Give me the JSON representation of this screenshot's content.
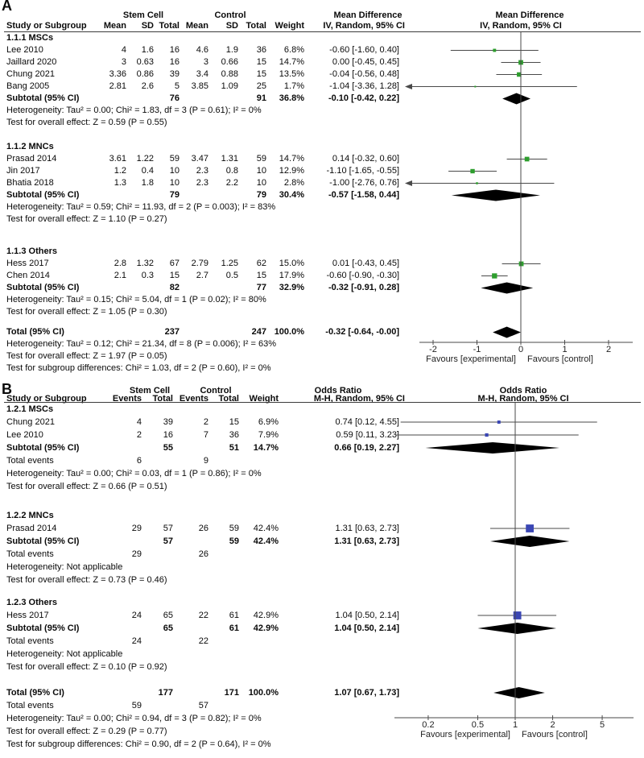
{
  "colors": {
    "marker_a": "#2d9e2d",
    "marker_b": "#3a46b4",
    "ci_line": "#4a4a4a",
    "axis": "#4a4a4a",
    "diamond": "#000000"
  },
  "chart_data": [
    {
      "type": "forest",
      "label": "A",
      "headers": {
        "group1": "Stem Cell",
        "group2": "Control",
        "effect": "Mean Difference",
        "study": "Study or Subgroup",
        "cols": [
          "Mean",
          "SD",
          "Total",
          "Mean",
          "SD",
          "Total"
        ],
        "weight_label": "Weight",
        "method": "IV, Random, 95% CI"
      },
      "scale": {
        "type": "linear",
        "range": [
          -2.6,
          2.6
        ],
        "ticks": [
          -2,
          -1,
          0,
          1,
          2
        ],
        "tick_labels": [
          "-2",
          "-1",
          "0",
          "1",
          "2"
        ],
        "favours_left": "Favours [experimental]",
        "favours_right": "Favours [control]"
      },
      "rows": [
        {
          "t": "group",
          "label": "1.1.1 MSCs"
        },
        {
          "t": "study",
          "label": "Lee 2010",
          "cols": [
            "4",
            "1.6",
            "16",
            "4.6",
            "1.9",
            "36"
          ],
          "weight": "6.8%",
          "w": 6.8,
          "ci": "-0.60 [-1.60, 0.40]",
          "est": -0.6,
          "lo": -1.6,
          "hi": 0.4
        },
        {
          "t": "study",
          "label": "Jaillard 2020",
          "cols": [
            "3",
            "0.63",
            "16",
            "3",
            "0.66",
            "15"
          ],
          "weight": "14.7%",
          "w": 14.7,
          "ci": "0.00 [-0.45, 0.45]",
          "est": 0.0,
          "lo": -0.45,
          "hi": 0.45
        },
        {
          "t": "study",
          "label": "Chung 2021",
          "cols": [
            "3.36",
            "0.86",
            "39",
            "3.4",
            "0.88",
            "15"
          ],
          "weight": "13.5%",
          "w": 13.5,
          "ci": "-0.04 [-0.56, 0.48]",
          "est": -0.04,
          "lo": -0.56,
          "hi": 0.48
        },
        {
          "t": "study",
          "label": "Bang 2005",
          "cols": [
            "2.81",
            "2.6",
            "5",
            "3.85",
            "1.09",
            "25"
          ],
          "weight": "1.7%",
          "w": 1.7,
          "ci": "-1.04 [-3.36, 1.28]",
          "est": -1.04,
          "lo": -3.36,
          "hi": 1.28
        },
        {
          "t": "pooled",
          "label": "Subtotal (95% CI)",
          "cols": [
            "",
            "",
            "76",
            "",
            "",
            "91"
          ],
          "weight": "36.8%",
          "ci": "-0.10 [-0.42, 0.22]",
          "est": -0.1,
          "lo": -0.42,
          "hi": 0.22
        },
        {
          "t": "note",
          "text": "Heterogeneity: Tau² = 0.00; Chi² = 1.83, df = 3 (P = 0.61); I² = 0%"
        },
        {
          "t": "note",
          "text": "Test for overall effect: Z = 0.59 (P = 0.55)"
        },
        {
          "t": "gap"
        },
        {
          "t": "group",
          "label": "1.1.2 MNCs"
        },
        {
          "t": "study",
          "label": "Prasad 2014",
          "cols": [
            "3.61",
            "1.22",
            "59",
            "3.47",
            "1.31",
            "59"
          ],
          "weight": "14.7%",
          "w": 14.7,
          "ci": "0.14 [-0.32, 0.60]",
          "est": 0.14,
          "lo": -0.32,
          "hi": 0.6
        },
        {
          "t": "study",
          "label": "Jin 2017",
          "cols": [
            "1.2",
            "0.4",
            "10",
            "2.3",
            "0.8",
            "10"
          ],
          "weight": "12.9%",
          "w": 12.9,
          "ci": "-1.10 [-1.65, -0.55]",
          "est": -1.1,
          "lo": -1.65,
          "hi": -0.55
        },
        {
          "t": "study",
          "label": "Bhatia 2018",
          "cols": [
            "1.3",
            "1.8",
            "10",
            "2.3",
            "2.2",
            "10"
          ],
          "weight": "2.8%",
          "w": 2.8,
          "ci": "-1.00 [-2.76, 0.76]",
          "est": -1.0,
          "lo": -2.76,
          "hi": 0.76
        },
        {
          "t": "pooled",
          "label": "Subtotal (95% CI)",
          "cols": [
            "",
            "",
            "79",
            "",
            "",
            "79"
          ],
          "weight": "30.4%",
          "ci": "-0.57 [-1.58, 0.44]",
          "est": -0.57,
          "lo": -1.58,
          "hi": 0.44
        },
        {
          "t": "note",
          "text": "Heterogeneity: Tau² = 0.59; Chi² = 11.93, df = 2 (P = 0.003); I² = 83%"
        },
        {
          "t": "note",
          "text": "Test for overall effect: Z = 1.10 (P = 0.27)"
        },
        {
          "t": "gap"
        },
        {
          "t": "group",
          "label": "1.1.3 Others"
        },
        {
          "t": "study",
          "label": "Hess 2017",
          "cols": [
            "2.8",
            "1.32",
            "67",
            "2.79",
            "1.25",
            "62"
          ],
          "weight": "15.0%",
          "w": 15.0,
          "ci": "0.01 [-0.43, 0.45]",
          "est": 0.01,
          "lo": -0.43,
          "hi": 0.45
        },
        {
          "t": "study",
          "label": "Chen 2014",
          "cols": [
            "2.1",
            "0.3",
            "15",
            "2.7",
            "0.5",
            "15"
          ],
          "weight": "17.9%",
          "w": 17.9,
          "ci": "-0.60 [-0.90, -0.30]",
          "est": -0.6,
          "lo": -0.9,
          "hi": -0.3
        },
        {
          "t": "pooled",
          "label": "Subtotal (95% CI)",
          "cols": [
            "",
            "",
            "82",
            "",
            "",
            "77"
          ],
          "weight": "32.9%",
          "ci": "-0.32 [-0.91, 0.28]",
          "est": -0.32,
          "lo": -0.91,
          "hi": 0.28
        },
        {
          "t": "note",
          "text": "Heterogeneity: Tau² = 0.15; Chi² = 5.04, df = 1 (P = 0.02); I² = 80%"
        },
        {
          "t": "note",
          "text": "Test for overall effect: Z = 1.05 (P = 0.30)"
        },
        {
          "t": "gap"
        },
        {
          "t": "pooled",
          "label": "Total (95% CI)",
          "cols": [
            "",
            "",
            "237",
            "",
            "",
            "247"
          ],
          "weight": "100.0%",
          "ci": "-0.32 [-0.64, -0.00]",
          "est": -0.32,
          "lo": -0.64,
          "hi": 0.0
        },
        {
          "t": "note",
          "text": "Heterogeneity: Tau² = 0.12; Chi² = 21.34, df = 8 (P = 0.006); I² = 63%"
        },
        {
          "t": "note",
          "text": "Test for overall effect: Z = 1.97 (P = 0.05)"
        },
        {
          "t": "note",
          "text": "Test for subgroup differences: Chi² = 1.03, df = 2 (P = 0.60), I² = 0%"
        }
      ]
    },
    {
      "type": "forest",
      "label": "B",
      "headers": {
        "group1": "Stem Cell",
        "group2": "Control",
        "effect": "Odds Ratio",
        "study": "Study or Subgroup",
        "cols": [
          "Events",
          "Total",
          "Events",
          "Total"
        ],
        "weight_label": "Weight",
        "method": "M-H, Random, 95% CI"
      },
      "scale": {
        "type": "log",
        "range": [
          0.1,
          7
        ],
        "ticks": [
          0.2,
          0.5,
          1,
          2,
          5
        ],
        "tick_labels": [
          "0.2",
          "0.5",
          "1",
          "2",
          "5"
        ],
        "favours_left": "Favours [experimental]",
        "favours_right": "Favours [control]"
      },
      "rows": [
        {
          "t": "group",
          "label": "1.2.1 MSCs"
        },
        {
          "t": "study",
          "label": "Chung 2021",
          "cols": [
            "4",
            "39",
            "2",
            "15"
          ],
          "weight": "6.9%",
          "w": 6.9,
          "ci": "0.74 [0.12, 4.55]",
          "est": 0.74,
          "lo": 0.12,
          "hi": 4.55
        },
        {
          "t": "study",
          "label": "Lee 2010",
          "cols": [
            "2",
            "16",
            "7",
            "36"
          ],
          "weight": "7.9%",
          "w": 7.9,
          "ci": "0.59 [0.11, 3.23]",
          "est": 0.59,
          "lo": 0.11,
          "hi": 3.23
        },
        {
          "t": "pooled",
          "label": "Subtotal (95% CI)",
          "cols": [
            "",
            "55",
            "",
            "51"
          ],
          "weight": "14.7%",
          "ci": "0.66 [0.19, 2.27]",
          "est": 0.66,
          "lo": 0.19,
          "hi": 2.27
        },
        {
          "t": "events",
          "label": "Total events",
          "v1": "6",
          "v2": "9"
        },
        {
          "t": "note",
          "text": "Heterogeneity: Tau² = 0.00; Chi² = 0.03, df = 1 (P = 0.86); I² = 0%"
        },
        {
          "t": "note",
          "text": "Test for overall effect: Z = 0.66 (P = 0.51)"
        },
        {
          "t": "gap"
        },
        {
          "t": "group",
          "label": "1.2.2 MNCs"
        },
        {
          "t": "study",
          "label": "Prasad 2014",
          "cols": [
            "29",
            "57",
            "26",
            "59"
          ],
          "weight": "42.4%",
          "w": 42.4,
          "ci": "1.31 [0.63, 2.73]",
          "est": 1.31,
          "lo": 0.63,
          "hi": 2.73
        },
        {
          "t": "pooled",
          "label": "Subtotal (95% CI)",
          "cols": [
            "",
            "57",
            "",
            "59"
          ],
          "weight": "42.4%",
          "ci": "1.31 [0.63, 2.73]",
          "est": 1.31,
          "lo": 0.63,
          "hi": 2.73
        },
        {
          "t": "events",
          "label": "Total events",
          "v1": "29",
          "v2": "26"
        },
        {
          "t": "note",
          "text": "Heterogeneity: Not applicable"
        },
        {
          "t": "note",
          "text": "Test for overall effect: Z = 0.73 (P = 0.46)"
        },
        {
          "t": "gap"
        },
        {
          "t": "group",
          "label": "1.2.3 Others"
        },
        {
          "t": "study",
          "label": "Hess 2017",
          "cols": [
            "24",
            "65",
            "22",
            "61"
          ],
          "weight": "42.9%",
          "w": 42.9,
          "ci": "1.04 [0.50, 2.14]",
          "est": 1.04,
          "lo": 0.5,
          "hi": 2.14
        },
        {
          "t": "pooled",
          "label": "Subtotal (95% CI)",
          "cols": [
            "",
            "65",
            "",
            "61"
          ],
          "weight": "42.9%",
          "ci": "1.04 [0.50, 2.14]",
          "est": 1.04,
          "lo": 0.5,
          "hi": 2.14
        },
        {
          "t": "events",
          "label": "Total events",
          "v1": "24",
          "v2": "22"
        },
        {
          "t": "note",
          "text": "Heterogeneity: Not applicable"
        },
        {
          "t": "note",
          "text": "Test for overall effect: Z = 0.10 (P = 0.92)"
        },
        {
          "t": "gap"
        },
        {
          "t": "pooled",
          "label": "Total (95% CI)",
          "cols": [
            "",
            "177",
            "",
            "171"
          ],
          "weight": "100.0%",
          "ci": "1.07 [0.67, 1.73]",
          "est": 1.07,
          "lo": 0.67,
          "hi": 1.73
        },
        {
          "t": "events",
          "label": "Total events",
          "v1": "59",
          "v2": "57"
        },
        {
          "t": "note",
          "text": "Heterogeneity: Tau² = 0.00; Chi² = 0.94, df = 3 (P = 0.82); I² = 0%"
        },
        {
          "t": "note",
          "text": "Test for overall effect: Z = 0.29 (P = 0.77)"
        },
        {
          "t": "note",
          "text": "Test for subgroup differences: Chi² = 0.90, df = 2 (P = 0.64), I² = 0%"
        }
      ]
    }
  ]
}
